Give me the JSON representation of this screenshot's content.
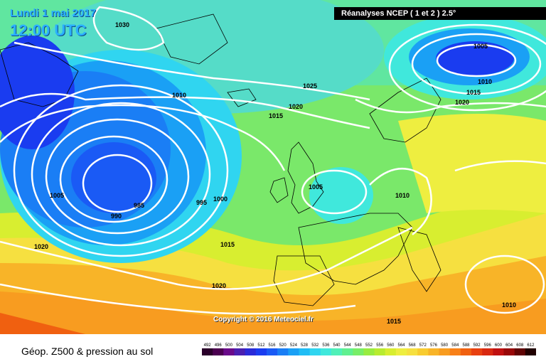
{
  "header": {
    "date": "Lundi 1 mai 2017",
    "time": "12:00 UTC",
    "source": "Réanalyses NCEP ( 1 et 2 ) 2.5°"
  },
  "copyright": "Copyright © 2016 Meteociel.fr",
  "caption": "Géop. Z500 & pression au sol",
  "legend": {
    "values": [
      "492",
      "496",
      "500",
      "504",
      "508",
      "512",
      "516",
      "520",
      "524",
      "528",
      "532",
      "536",
      "540",
      "544",
      "548",
      "552",
      "556",
      "560",
      "564",
      "568",
      "572",
      "576",
      "580",
      "584",
      "588",
      "592",
      "596",
      "600",
      "604",
      "608",
      "612"
    ],
    "colors": [
      "#2a002a",
      "#4b0050",
      "#6a0a8a",
      "#4a1fb0",
      "#2a2ad8",
      "#1a3cf0",
      "#1a5af5",
      "#1a7ef5",
      "#1aa0f5",
      "#20bdf5",
      "#30d5f0",
      "#40e8dc",
      "#50f0b8",
      "#60f090",
      "#78ee68",
      "#98ec40",
      "#b8ec30",
      "#d8ee30",
      "#eeee40",
      "#f6e040",
      "#f8cc30",
      "#f8b428",
      "#f89c20",
      "#f88018",
      "#f06010",
      "#e84010",
      "#d82810",
      "#c01010",
      "#980808",
      "#600404",
      "#200000"
    ]
  },
  "isobars": [
    {
      "label": "1030"
    },
    {
      "label": "1025"
    },
    {
      "label": "1020"
    },
    {
      "label": "1015"
    },
    {
      "label": "1010"
    },
    {
      "label": "1005"
    },
    {
      "label": "1000"
    },
    {
      "label": "995"
    },
    {
      "label": "990"
    },
    {
      "label": "985"
    },
    {
      "label": "1005"
    },
    {
      "label": "1005"
    },
    {
      "label": "1010"
    },
    {
      "label": "1015"
    },
    {
      "label": "1020"
    },
    {
      "label": "1010"
    },
    {
      "label": "1020"
    },
    {
      "label": "1015"
    },
    {
      "label": "1020"
    },
    {
      "label": "1015"
    },
    {
      "label": "1010"
    }
  ]
}
